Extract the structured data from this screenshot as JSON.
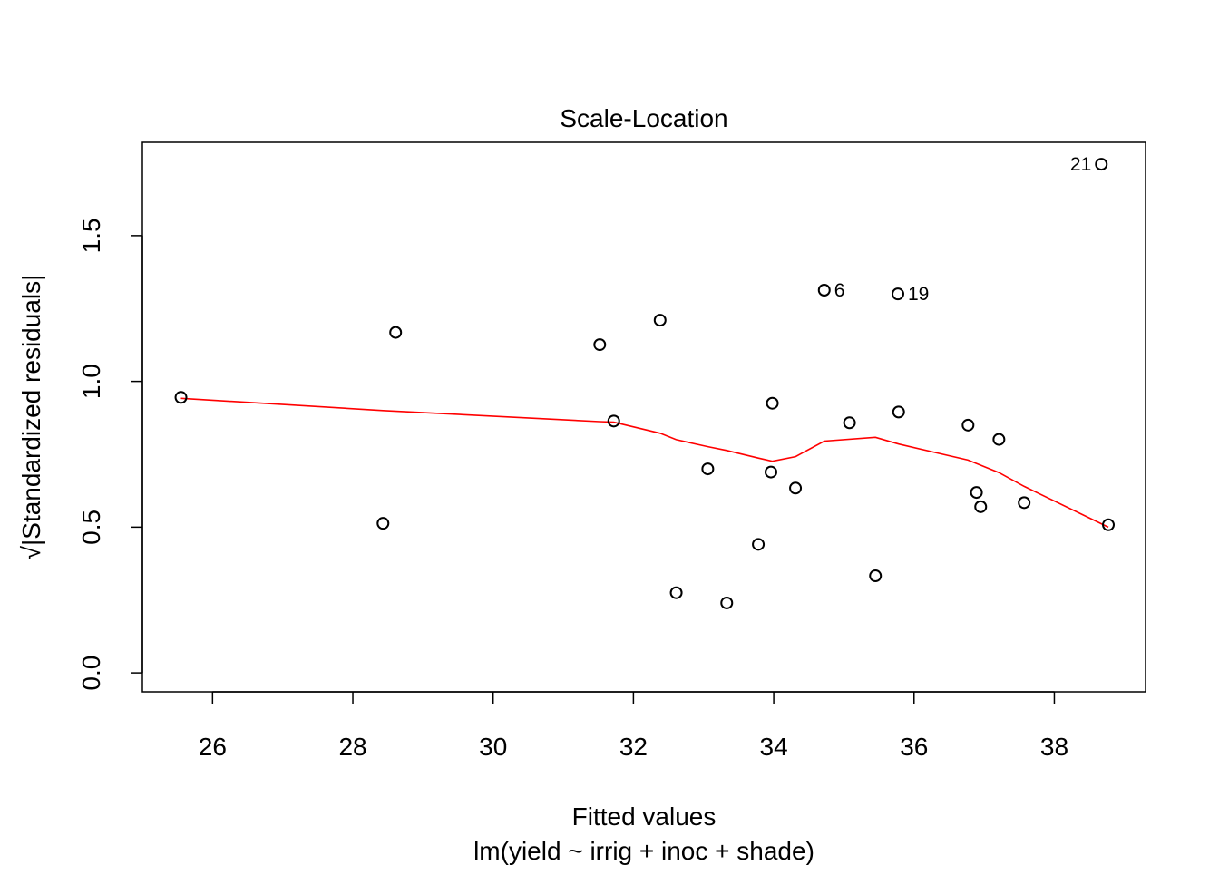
{
  "chart_data": {
    "type": "scatter",
    "title": "Scale-Location",
    "xlabel": "Fitted values",
    "subtitle": "lm(yield ~ irrig + inoc + shade)",
    "ylabel_radical": "√",
    "ylabel_text": "|Standardized residuals|",
    "xlim": [
      25.0,
      39.3
    ],
    "ylim": [
      -0.065,
      1.82
    ],
    "x_ticks": [
      26,
      28,
      30,
      32,
      34,
      36,
      38
    ],
    "x_tick_labels": [
      "26",
      "28",
      "30",
      "32",
      "34",
      "36",
      "38"
    ],
    "y_ticks": [
      0.0,
      0.5,
      1.0,
      1.5
    ],
    "y_tick_labels": [
      "0.0",
      "0.5",
      "1.0",
      "1.5"
    ],
    "grid": false,
    "legend": "none",
    "point_color": "#000000",
    "smooth_color": "#ff0000",
    "points": [
      {
        "x": 25.55,
        "y": 0.945,
        "label": ""
      },
      {
        "x": 28.43,
        "y": 0.513,
        "label": ""
      },
      {
        "x": 28.61,
        "y": 1.168,
        "label": ""
      },
      {
        "x": 31.52,
        "y": 1.126,
        "label": ""
      },
      {
        "x": 31.72,
        "y": 0.864,
        "label": ""
      },
      {
        "x": 32.38,
        "y": 1.21,
        "label": ""
      },
      {
        "x": 32.61,
        "y": 0.275,
        "label": ""
      },
      {
        "x": 33.06,
        "y": 0.7,
        "label": ""
      },
      {
        "x": 33.33,
        "y": 0.24,
        "label": ""
      },
      {
        "x": 33.78,
        "y": 0.441,
        "label": ""
      },
      {
        "x": 33.96,
        "y": 0.689,
        "label": ""
      },
      {
        "x": 33.98,
        "y": 0.925,
        "label": ""
      },
      {
        "x": 34.31,
        "y": 0.634,
        "label": ""
      },
      {
        "x": 34.72,
        "y": 1.313,
        "label": "6"
      },
      {
        "x": 35.08,
        "y": 0.858,
        "label": ""
      },
      {
        "x": 35.45,
        "y": 0.333,
        "label": ""
      },
      {
        "x": 35.77,
        "y": 1.3,
        "label": "19"
      },
      {
        "x": 35.78,
        "y": 0.895,
        "label": ""
      },
      {
        "x": 36.77,
        "y": 0.85,
        "label": ""
      },
      {
        "x": 36.89,
        "y": 0.619,
        "label": ""
      },
      {
        "x": 36.95,
        "y": 0.57,
        "label": ""
      },
      {
        "x": 37.21,
        "y": 0.801,
        "label": ""
      },
      {
        "x": 37.57,
        "y": 0.584,
        "label": ""
      },
      {
        "x": 38.67,
        "y": 1.745,
        "label": "21"
      },
      {
        "x": 38.77,
        "y": 0.508,
        "label": ""
      }
    ],
    "smooth_line": {
      "x": [
        25.55,
        28.43,
        31.52,
        31.72,
        32.38,
        32.61,
        33.06,
        33.33,
        33.78,
        33.98,
        34.31,
        34.72,
        35.45,
        35.78,
        36.77,
        37.21,
        37.57,
        38.77
      ],
      "y": [
        0.942,
        0.9,
        0.862,
        0.86,
        0.822,
        0.8,
        0.776,
        0.763,
        0.737,
        0.726,
        0.742,
        0.795,
        0.808,
        0.785,
        0.73,
        0.687,
        0.64,
        0.5
      ]
    }
  }
}
